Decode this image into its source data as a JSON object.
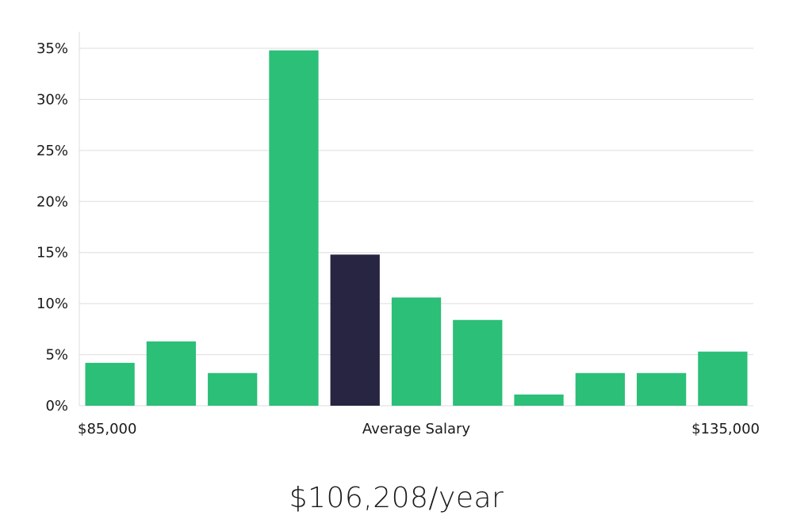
{
  "chart_data": {
    "type": "bar",
    "title": "",
    "xlabel": "Average Salary",
    "ylabel": "",
    "x_range_labels": {
      "min": "$85,000",
      "max": "$135,000"
    },
    "ylim": [
      0,
      35
    ],
    "yticks": [
      {
        "value": 0,
        "label": "0%"
      },
      {
        "value": 5,
        "label": "5%"
      },
      {
        "value": 10,
        "label": "10%"
      },
      {
        "value": 15,
        "label": "15%"
      },
      {
        "value": 20,
        "label": "20%"
      },
      {
        "value": 25,
        "label": "25%"
      },
      {
        "value": 30,
        "label": "30%"
      },
      {
        "value": 35,
        "label": "35%"
      }
    ],
    "grid": true,
    "values": [
      4.2,
      6.3,
      3.2,
      34.8,
      14.8,
      10.6,
      8.4,
      1.1,
      3.2,
      3.2,
      5.3
    ],
    "highlight_index": 4,
    "colors": {
      "bar": "#2bbf77",
      "highlight": "#272541",
      "grid": "#dddddd",
      "axis": "#dddddd"
    }
  },
  "summary": {
    "salary": "$106,208/year"
  }
}
